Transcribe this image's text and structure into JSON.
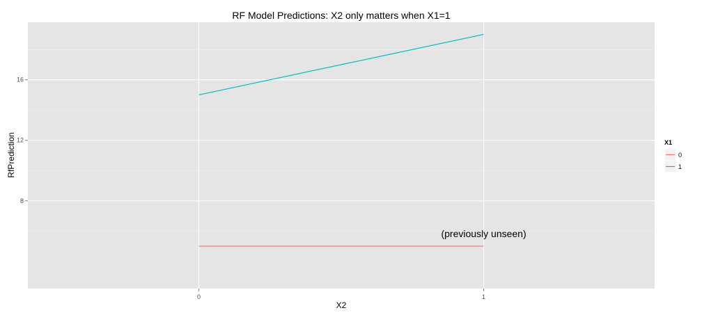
{
  "chart_data": {
    "type": "line",
    "title": "RF Model Predictions: X2 only matters when X1=1",
    "xlabel": "X2",
    "ylabel": "RfPrediction",
    "x": [
      0,
      1
    ],
    "x_tick_labels": [
      "0",
      "1"
    ],
    "xlim": [
      -0.6,
      1.6
    ],
    "ylim": [
      2.2,
      19.8
    ],
    "y_ticks": [
      8,
      12,
      16
    ],
    "y_tick_labels": [
      "8",
      "12",
      "16"
    ],
    "grid": true,
    "legend": {
      "title": "X1",
      "position": "right"
    },
    "series": [
      {
        "name": "0",
        "color": "#F8766D",
        "values": [
          5.0,
          5.0
        ]
      },
      {
        "name": "1",
        "color": "#00BFC4",
        "values": [
          15.0,
          19.0
        ]
      }
    ],
    "annotations": [
      {
        "text": "(previously unseen)",
        "x": 1.0,
        "y": 5.6
      }
    ]
  }
}
